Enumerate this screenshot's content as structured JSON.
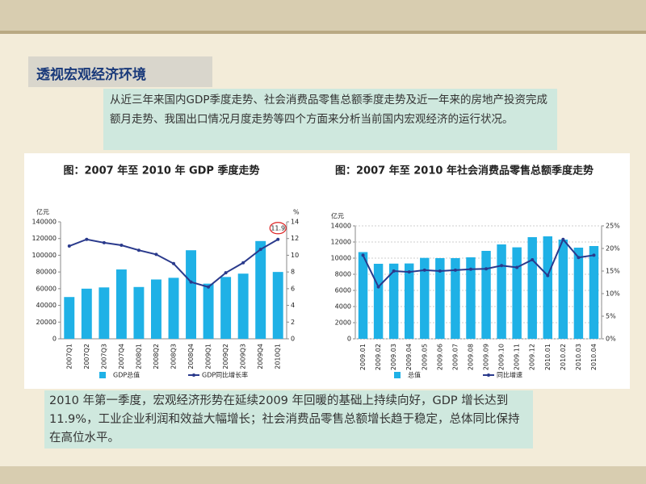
{
  "title": "透视宏观经济环境",
  "intro": "从近三年来国内GDP季度走势、社会消费品零售总额季度走势及近一年来的房地产投资完成额月走势、我国出口情况月度走势等四个方面来分析当前国内宏观经济的运行状况。",
  "summary": "2010 年第一季度，宏观经济形势在延续2009 年回暖的基础上持续向好，GDP 增长达到11.9%，工业企业利润和效益大幅增长；社会消费品零售总额增长趋于稳定，总体同比保持在高位水平。",
  "chart_data": [
    {
      "type": "bar",
      "title": "图：2007 年至 2010 年 GDP 季度走势",
      "y_label": "亿元",
      "y2_label": "%",
      "categories": [
        "2007Q1",
        "2007Q2",
        "2007Q3",
        "2007Q4",
        "2008Q1",
        "2008Q2",
        "2008Q3",
        "2008Q4",
        "2009Q1",
        "2009Q2",
        "2009Q3",
        "2009Q4",
        "2010Q1"
      ],
      "series": [
        {
          "name": "GDP总值",
          "type": "bar",
          "color": "#1fb1e6",
          "values": [
            50000,
            60000,
            61500,
            83000,
            62000,
            71000,
            73000,
            106000,
            66000,
            74000,
            78000,
            117000,
            80000
          ]
        },
        {
          "name": "GDP同比增长率",
          "type": "line",
          "axis": "y2",
          "color": "#2a3a8c",
          "values": [
            11.1,
            11.9,
            11.5,
            11.2,
            10.6,
            10.1,
            9.0,
            6.8,
            6.2,
            7.9,
            9.1,
            10.7,
            11.9
          ],
          "value_labels": [
            null,
            null,
            null,
            null,
            null,
            null,
            null,
            null,
            null,
            null,
            null,
            null,
            "11.9"
          ]
        }
      ],
      "ylim": [
        0,
        140000
      ],
      "yticks": [
        0,
        20000,
        40000,
        60000,
        80000,
        100000,
        120000,
        140000
      ],
      "y2lim": [
        0,
        14
      ],
      "y2ticks": [
        0,
        2,
        4,
        6,
        8,
        10,
        12,
        14
      ],
      "grid": false
    },
    {
      "type": "bar",
      "title": "图：2007 年至 2010 年社会消费品零售总额季度走势",
      "y_label": "亿元",
      "categories": [
        "2009.01",
        "2009.02",
        "2009.03",
        "2009.04",
        "2009.05",
        "2009.06",
        "2009.07",
        "2009.08",
        "2009.09",
        "2009.10",
        "2009.11",
        "2009.12",
        "2010.01",
        "2010.02",
        "2010.03",
        "2010.04"
      ],
      "series": [
        {
          "name": "总值",
          "type": "bar",
          "color": "#1fb1e6",
          "values": [
            10750,
            9300,
            9320,
            9340,
            10030,
            10000,
            10000,
            10100,
            10900,
            11700,
            11340,
            12600,
            12700,
            12300,
            11300,
            11500
          ]
        },
        {
          "name": "同比增速",
          "type": "line",
          "axis": "y2",
          "color": "#2a3a8c",
          "values": [
            18.5,
            11.5,
            15.0,
            14.8,
            15.2,
            15.0,
            15.2,
            15.4,
            15.5,
            16.2,
            15.8,
            17.5,
            14.0,
            22.0,
            18.0,
            18.5
          ]
        }
      ],
      "ylim": [
        0,
        14000
      ],
      "yticks": [
        0,
        2000,
        4000,
        6000,
        8000,
        10000,
        12000,
        14000
      ],
      "y2lim": [
        0,
        25
      ],
      "y2ticks": [
        {
          "value": 0,
          "label": "0%"
        },
        {
          "value": 5,
          "label": "5%"
        },
        {
          "value": 10,
          "label": "10%"
        },
        {
          "value": 15,
          "label": "15%"
        },
        {
          "value": 20,
          "label": "20%"
        },
        {
          "value": 25,
          "label": "25%"
        }
      ],
      "grid": true
    }
  ]
}
